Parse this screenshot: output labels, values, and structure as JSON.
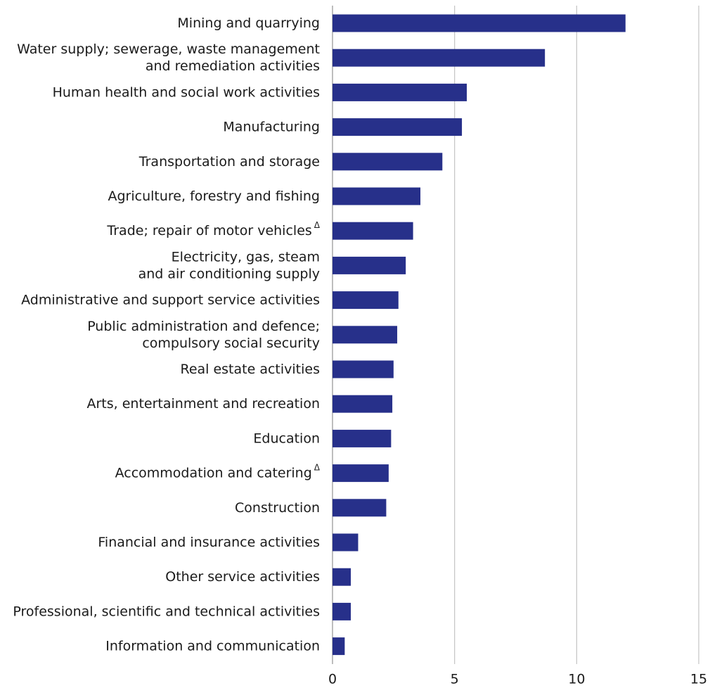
{
  "chart_data": {
    "type": "bar",
    "orientation": "horizontal",
    "title": "",
    "xlabel": "",
    "ylabel": "",
    "xlim": [
      0,
      15
    ],
    "grid": true,
    "legend": "none",
    "bar_color": "#27308a",
    "x_ticks": [
      0,
      5,
      10,
      15
    ],
    "categories": [
      {
        "lines": [
          "Mining and quarrying"
        ],
        "marker": ""
      },
      {
        "lines": [
          "Water supply; sewerage, waste management",
          "and remediation activities"
        ],
        "marker": ""
      },
      {
        "lines": [
          "Human health and social work activities"
        ],
        "marker": ""
      },
      {
        "lines": [
          "Manufacturing"
        ],
        "marker": ""
      },
      {
        "lines": [
          "Transportation and storage"
        ],
        "marker": ""
      },
      {
        "lines": [
          "Agriculture, forestry and fishing"
        ],
        "marker": ""
      },
      {
        "lines": [
          "Trade; repair of motor vehicles"
        ],
        "marker": "Δ"
      },
      {
        "lines": [
          "Electricity, gas, steam",
          "and air conditioning supply"
        ],
        "marker": ""
      },
      {
        "lines": [
          "Administrative and support service activities"
        ],
        "marker": ""
      },
      {
        "lines": [
          "Public administration and defence;",
          "compulsory social security"
        ],
        "marker": ""
      },
      {
        "lines": [
          "Real estate activities"
        ],
        "marker": ""
      },
      {
        "lines": [
          "Arts, entertainment and recreation"
        ],
        "marker": ""
      },
      {
        "lines": [
          "Education"
        ],
        "marker": ""
      },
      {
        "lines": [
          "Accommodation and catering"
        ],
        "marker": "Δ"
      },
      {
        "lines": [
          "Construction"
        ],
        "marker": ""
      },
      {
        "lines": [
          "Financial and insurance activities"
        ],
        "marker": ""
      },
      {
        "lines": [
          "Other service activities"
        ],
        "marker": ""
      },
      {
        "lines": [
          "Professional, scientific and technical activities"
        ],
        "marker": ""
      },
      {
        "lines": [
          "Information and communication"
        ],
        "marker": ""
      }
    ],
    "values": [
      12.0,
      8.7,
      5.5,
      5.3,
      4.5,
      3.6,
      3.3,
      3.0,
      2.7,
      2.65,
      2.5,
      2.45,
      2.4,
      2.3,
      2.2,
      1.05,
      0.75,
      0.75,
      0.5
    ]
  }
}
